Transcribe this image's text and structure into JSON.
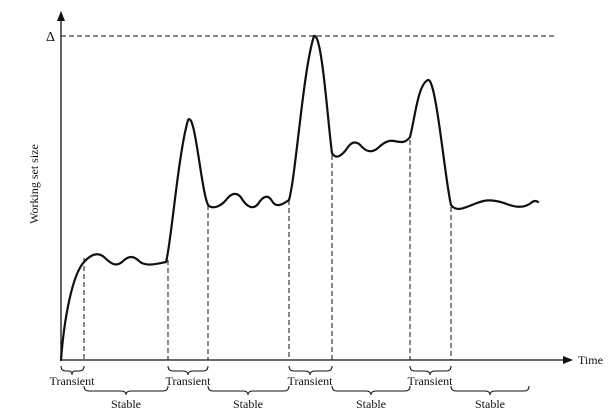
{
  "diagram": {
    "y_axis_label": "Working set size",
    "x_axis_label": "Time",
    "delta_label": "Δ",
    "transient_labels": [
      "Transient",
      "Transient",
      "Transient",
      "Transient"
    ],
    "stable_labels": [
      "Stable",
      "Stable",
      "Stable",
      "Stable"
    ]
  }
}
